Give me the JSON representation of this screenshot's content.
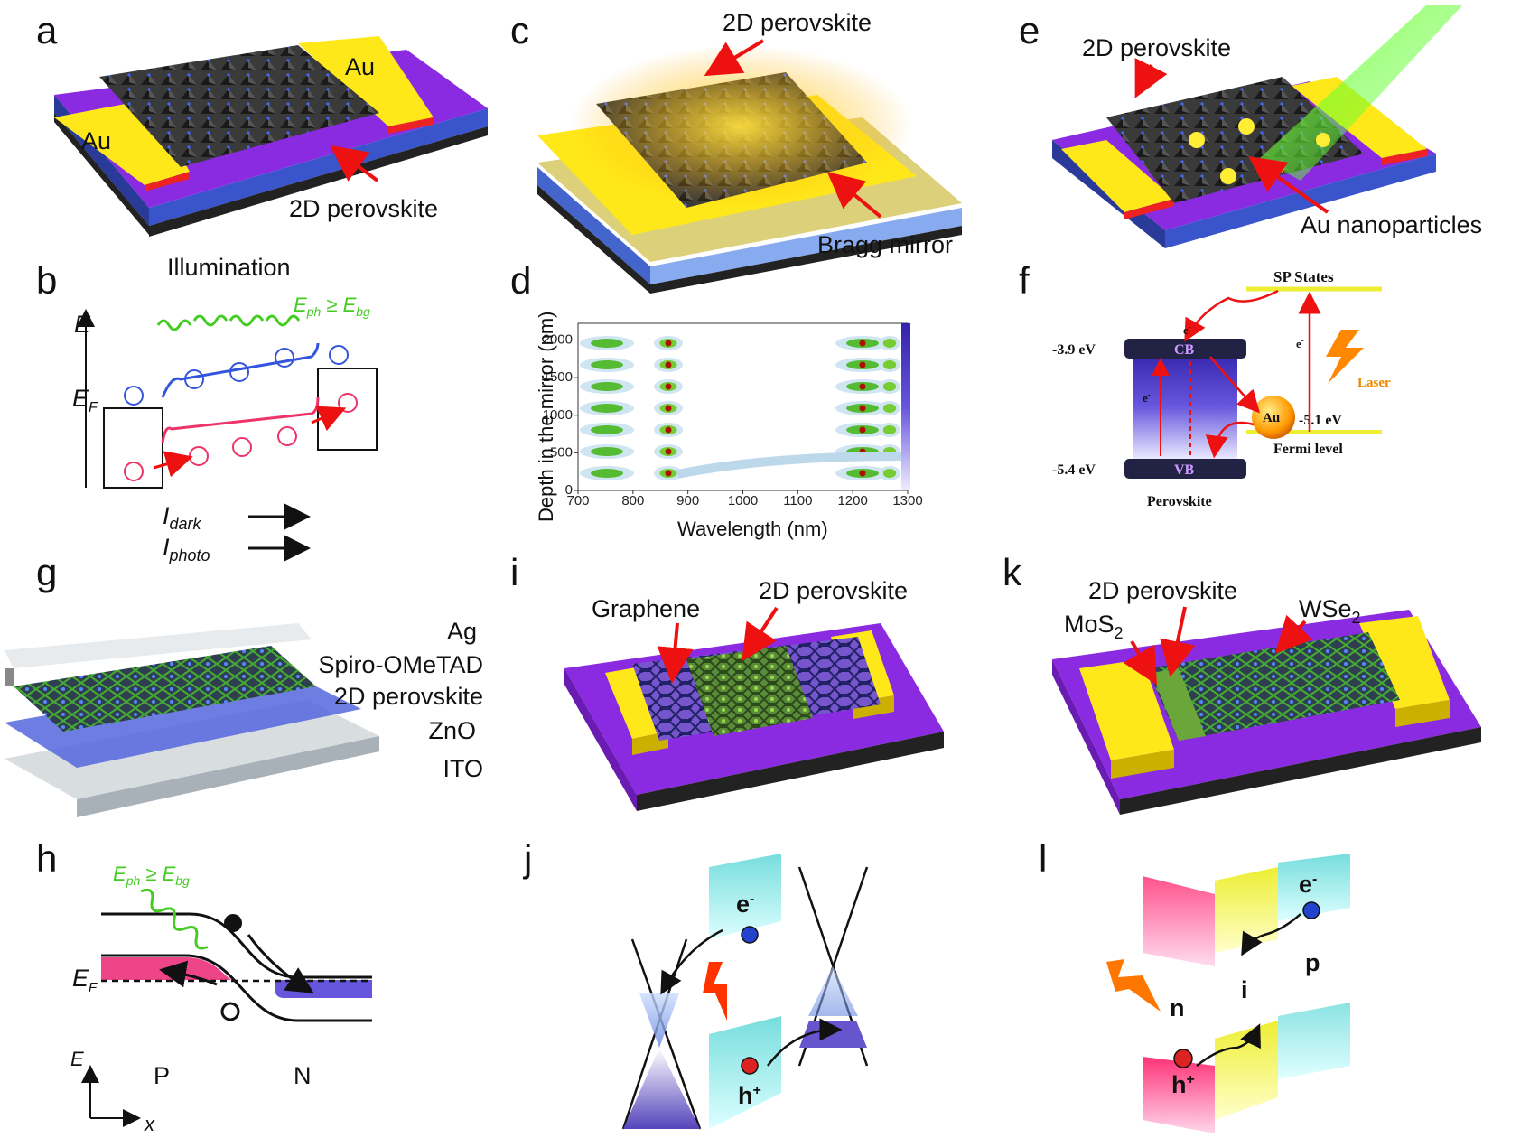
{
  "panels": {
    "a": {
      "letter": "a",
      "au_top": "Au",
      "au_left": "Au",
      "material": "2D perovskite"
    },
    "b": {
      "letter": "b",
      "illumination": "Illumination",
      "energy_axis": "E",
      "fermi": "E",
      "fermi_sub": "F",
      "photon_cond": "E",
      "photon_cond_sub1": "ph",
      "photon_cond_mid": " ≥ E",
      "photon_cond_sub2": "bg",
      "i_dark": "I",
      "i_dark_sub": "dark",
      "i_photo": "I",
      "i_photo_sub": "photo"
    },
    "c": {
      "letter": "c",
      "material": "2D perovskite",
      "mirror": "Bragg mirror"
    },
    "d": {
      "letter": "d",
      "ylabel": "Depth in the mirror (nm)",
      "xlabel": "Wavelength (nm)",
      "xticks": [
        "700",
        "800",
        "900",
        "1000",
        "1100",
        "1200",
        "1300"
      ],
      "yticks": [
        "0",
        "500",
        "1000",
        "1500",
        "2000"
      ]
    },
    "e": {
      "letter": "e",
      "material": "2D perovskite",
      "particles": "Au nanoparticles"
    },
    "f": {
      "letter": "f",
      "sp_states": "SP States",
      "cb": "CB",
      "vb": "VB",
      "cb_energy": "-3.9 eV",
      "vb_energy": "-5.4 eV",
      "fermi_energy": "-5.1 eV",
      "fermi_level": "Fermi level",
      "perovskite": "Perovskite",
      "au": "Au",
      "laser": "Laser",
      "electron": "e",
      "electron_sup": "-"
    },
    "g": {
      "letter": "g",
      "layers": [
        "Ag",
        "Spiro-OMeTAD",
        "2D perovskite",
        "ZnO",
        "ITO"
      ]
    },
    "h": {
      "letter": "h",
      "photon_cond": "E",
      "photon_cond_sub1": "ph",
      "photon_cond_mid": " ≥ E",
      "photon_cond_sub2": "bg",
      "fermi": "E",
      "fermi_sub": "F",
      "p": "P",
      "n": "N",
      "energy_axis": "E",
      "x_axis": "x"
    },
    "i": {
      "letter": "i",
      "graphene": "Graphene",
      "material": "2D perovskite"
    },
    "j": {
      "letter": "j",
      "electron": "e",
      "electron_sup": "-",
      "hole": "h",
      "hole_sup": "+"
    },
    "k": {
      "letter": "k",
      "material": "2D perovskite",
      "mos2": "MoS",
      "mos2_sub": "2",
      "wse2": "WSe",
      "wse2_sub": "2"
    },
    "l": {
      "letter": "l",
      "electron": "e",
      "electron_sup": "-",
      "hole": "h",
      "hole_sup": "+",
      "n": "n",
      "i": "i",
      "p": "p"
    }
  },
  "colors": {
    "gold": "#ffe81a",
    "purple": "#8a2be2",
    "red": "#ee1111",
    "blue": "#3355dd",
    "green": "#44cc22",
    "pink": "#ee4488",
    "cyan": "#aaeeee"
  }
}
